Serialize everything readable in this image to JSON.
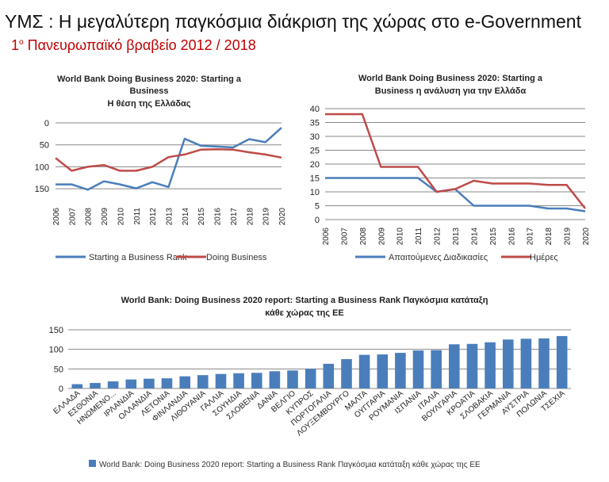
{
  "slide": {
    "title": "ΥΜΣ : Η μεγαλύτερη παγκόσμια διάκριση της χώρας στο e-Government",
    "subtitle_prefix": "1",
    "subtitle_sup": "ο",
    "subtitle_rest": " Πανευρωπαϊκό βραβείο 2012 / 2018"
  },
  "chart_data": [
    {
      "type": "line",
      "title_lines": [
        "World Bank Doing Business 2020: Starting a",
        "Business",
        "Η θέση της Ελλάδας"
      ],
      "x": [
        "2006",
        "2007",
        "2008",
        "2009",
        "2010",
        "2011",
        "2012",
        "2013",
        "2014",
        "2015",
        "2016",
        "2017",
        "2018",
        "2019",
        "2020"
      ],
      "y_reversed": true,
      "ylim": [
        0,
        175
      ],
      "yticks": [
        0,
        50,
        100,
        150
      ],
      "series": [
        {
          "name": "Starting a Business Rank",
          "color": "#4a7ebb",
          "values": [
            140,
            140,
            152,
            133,
            140,
            149,
            135,
            146,
            36,
            52,
            54,
            56,
            37,
            44,
            11
          ]
        },
        {
          "name": "Doing Business",
          "color": "#be4b48",
          "values": [
            80,
            109,
            100,
            96,
            109,
            109,
            100,
            78,
            72,
            61,
            60,
            61,
            67,
            72,
            79
          ]
        }
      ],
      "legend": "bottom"
    },
    {
      "type": "line",
      "title_lines": [
        "World Bank Doing Business 2020: Starting a",
        "Business η ανάλυση για την Ελλάδα"
      ],
      "x": [
        "2006",
        "2007",
        "2008",
        "2009",
        "2010",
        "2011",
        "2012",
        "2013",
        "2014",
        "2015",
        "2016",
        "2017",
        "2018",
        "2019",
        "2020"
      ],
      "ylim": [
        0,
        40
      ],
      "yticks": [
        0,
        5,
        10,
        15,
        20,
        25,
        30,
        35,
        40
      ],
      "series": [
        {
          "name": "Απαιτούμενες Διαδικασίες",
          "color": "#4a7ebb",
          "values": [
            15,
            15,
            15,
            15,
            15,
            15,
            10,
            11,
            5,
            5,
            5,
            5,
            4,
            4,
            3
          ]
        },
        {
          "name": "Ημέρες",
          "color": "#be4b48",
          "values": [
            38,
            38,
            38,
            19,
            19,
            19,
            10,
            11,
            14,
            13,
            13,
            13,
            12.5,
            12.5,
            4
          ]
        }
      ],
      "legend": "bottom"
    },
    {
      "type": "bar",
      "title_lines": [
        "World Bank: Doing Business 2020 report: Starting a Business Rank Παγκόσμια κατάταξη",
        "κάθε χώρας της ΕΕ"
      ],
      "categories": [
        "ΕΛΛΑΔΑ",
        "ΕΣΘΟΝΙΑ",
        "ΗΝΩΜΕΝΟ...",
        "ΙΡΛΑΝΔΙΑ",
        "ΟΛΛΑΝΔΙΑ",
        "ΛΕΤΟΝΙΑ",
        "ΦΙΝΛΑΝΔΙΑ",
        "ΛΙΘΟΥΑΝΙΑ",
        "ΓΑΛΛΙΑ",
        "ΣΟΥΗΔΙΑ",
        "ΣΛΟΒΕΝΙΑ",
        "ΔΑΝΙΑ",
        "ΒΕΛΓΙΟ",
        "ΚΥΠΡΟΣ",
        "ΠΟΡΤΟΓΑΛΙΑ",
        "ΛΟΥΞΕΜΒΟΥΡΓΟ",
        "ΜΑΛΤΑ",
        "ΟΥΓΓΑΡΙΑ",
        "ΡΟΥΜΑΝΙΑ",
        "ΙΣΠΑΝΙΑ",
        "ΙΤΑΛΙΑ",
        "ΒΟΥΛΓΑΡΙΑ",
        "ΚΡΟΑΤΙΑ",
        "ΣΛΟΒΑΚΙΑ",
        "ΓΕΡΜΑΝΙΑ",
        "ΑΥΣΤΡΙΑ",
        "ΠΟΛΩΝΙΑ",
        "ΤΣΕΧΙΑ"
      ],
      "values": [
        11,
        14,
        18,
        23,
        25,
        26,
        31,
        34,
        37,
        39,
        40,
        44,
        46,
        50,
        63,
        75,
        86,
        87,
        91,
        97,
        98,
        113,
        114,
        118,
        125,
        127,
        128,
        134
      ],
      "ylim": [
        0,
        150
      ],
      "yticks": [
        0,
        50,
        100,
        150
      ],
      "color": "#4a7ebb",
      "legend_label": "World Bank: Doing Business 2020 report: Starting a Business Rank Παγκόσμια κατάταξη κάθε χώρας της ΕΕ",
      "legend": "bottom"
    }
  ]
}
